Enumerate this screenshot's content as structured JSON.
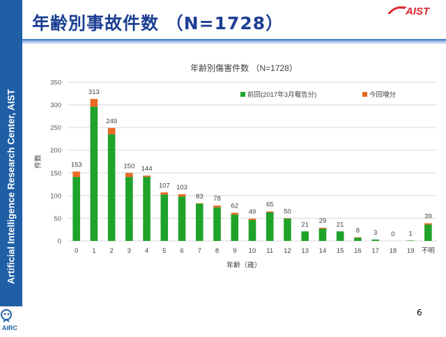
{
  "slide": {
    "title": "年齢別事故件数 （N=1728）",
    "page_number": "6",
    "sidebar_text": "Artificial Intelligence Research Center, AIST",
    "logo_text": "AIST",
    "airc_logo_text": "AIRC"
  },
  "colors": {
    "sidebar": "#1f5fa6",
    "title": "#1c3f93",
    "previous": "#1fa32a",
    "increase": "#e86a26",
    "aist_red": "#d9262b"
  },
  "chart_data": {
    "type": "bar",
    "stacked": true,
    "title": "年齢別傷害件数 （N=1728）",
    "xlabel": "年齢（歳）",
    "ylabel": "件数",
    "ylim": [
      0,
      350
    ],
    "yticks": [
      0,
      50,
      100,
      150,
      200,
      250,
      300,
      350
    ],
    "grid": true,
    "legend_position": "top-right",
    "categories": [
      "0",
      "1",
      "2",
      "3",
      "4",
      "5",
      "6",
      "7",
      "8",
      "9",
      "10",
      "11",
      "12",
      "13",
      "14",
      "15",
      "16",
      "17",
      "18",
      "19",
      "不明"
    ],
    "totals": [
      153,
      313,
      249,
      150,
      144,
      107,
      103,
      83,
      78,
      62,
      49,
      65,
      50,
      21,
      29,
      21,
      8,
      3,
      0,
      1,
      39
    ],
    "series": [
      {
        "name": "前回(2017年3月報告分)",
        "color": "#1fa32a",
        "values": [
          141,
          296,
          235,
          141,
          141,
          102,
          98,
          82,
          74,
          58,
          46,
          63,
          49,
          21,
          27,
          21,
          7,
          3,
          0,
          1,
          36
        ]
      },
      {
        "name": "今回増分",
        "color": "#e86a26",
        "values": [
          12,
          17,
          14,
          9,
          3,
          5,
          5,
          1,
          4,
          4,
          3,
          2,
          1,
          0,
          2,
          0,
          1,
          0,
          0,
          0,
          3
        ]
      }
    ]
  }
}
